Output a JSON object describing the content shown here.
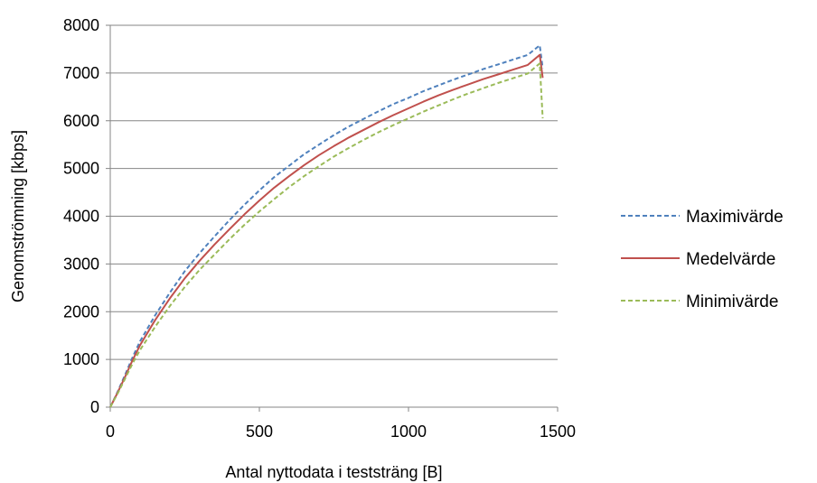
{
  "chart_data": {
    "type": "line",
    "title": "",
    "xlabel": "Antal nyttodata i teststräng [B]",
    "ylabel": "Genomströmning [kbps]",
    "xlim": [
      0,
      1500
    ],
    "ylim": [
      0,
      8000
    ],
    "xticks": [
      "0",
      "500",
      "1000",
      "1500"
    ],
    "yticks": [
      "0",
      "1000",
      "2000",
      "3000",
      "4000",
      "5000",
      "6000",
      "7000",
      "8000"
    ],
    "grid": "horizontal",
    "legend_position": "right",
    "series": [
      {
        "name": "Maximivärde",
        "color": "#4F81BD",
        "style": "dashed",
        "x": [
          0,
          25,
          50,
          75,
          100,
          150,
          200,
          250,
          300,
          350,
          400,
          450,
          500,
          550,
          600,
          650,
          700,
          750,
          800,
          850,
          900,
          950,
          1000,
          1050,
          1100,
          1150,
          1200,
          1250,
          1300,
          1350,
          1400,
          1440,
          1450
        ],
        "y": [
          0,
          330,
          680,
          1050,
          1380,
          1920,
          2400,
          2850,
          3230,
          3580,
          3920,
          4240,
          4540,
          4820,
          5060,
          5300,
          5500,
          5700,
          5880,
          6040,
          6200,
          6350,
          6480,
          6620,
          6740,
          6860,
          6970,
          7080,
          7180,
          7280,
          7380,
          7580,
          7100
        ]
      },
      {
        "name": "Medelvärde",
        "color": "#C0504D",
        "style": "solid",
        "x": [
          0,
          25,
          50,
          75,
          100,
          150,
          200,
          250,
          300,
          350,
          400,
          450,
          500,
          550,
          600,
          650,
          700,
          750,
          800,
          850,
          900,
          950,
          1000,
          1050,
          1100,
          1150,
          1200,
          1250,
          1300,
          1350,
          1400,
          1440,
          1450
        ],
        "y": [
          0,
          310,
          640,
          990,
          1300,
          1820,
          2280,
          2700,
          3070,
          3410,
          3730,
          4040,
          4330,
          4600,
          4840,
          5070,
          5280,
          5470,
          5650,
          5810,
          5970,
          6120,
          6260,
          6400,
          6530,
          6650,
          6760,
          6870,
          6970,
          7070,
          7170,
          7380,
          6900
        ]
      },
      {
        "name": "Minimivärde",
        "color": "#9BBB59",
        "style": "dashed",
        "x": [
          0,
          25,
          50,
          75,
          100,
          150,
          200,
          250,
          300,
          350,
          400,
          450,
          500,
          550,
          600,
          650,
          700,
          750,
          800,
          850,
          900,
          950,
          1000,
          1050,
          1100,
          1150,
          1200,
          1250,
          1300,
          1350,
          1400,
          1440,
          1450
        ],
        "y": [
          0,
          290,
          600,
          920,
          1200,
          1680,
          2120,
          2520,
          2880,
          3200,
          3520,
          3820,
          4100,
          4360,
          4610,
          4840,
          5050,
          5250,
          5430,
          5600,
          5760,
          5910,
          6050,
          6190,
          6320,
          6450,
          6570,
          6680,
          6790,
          6890,
          6990,
          7200,
          6050
        ]
      }
    ]
  }
}
